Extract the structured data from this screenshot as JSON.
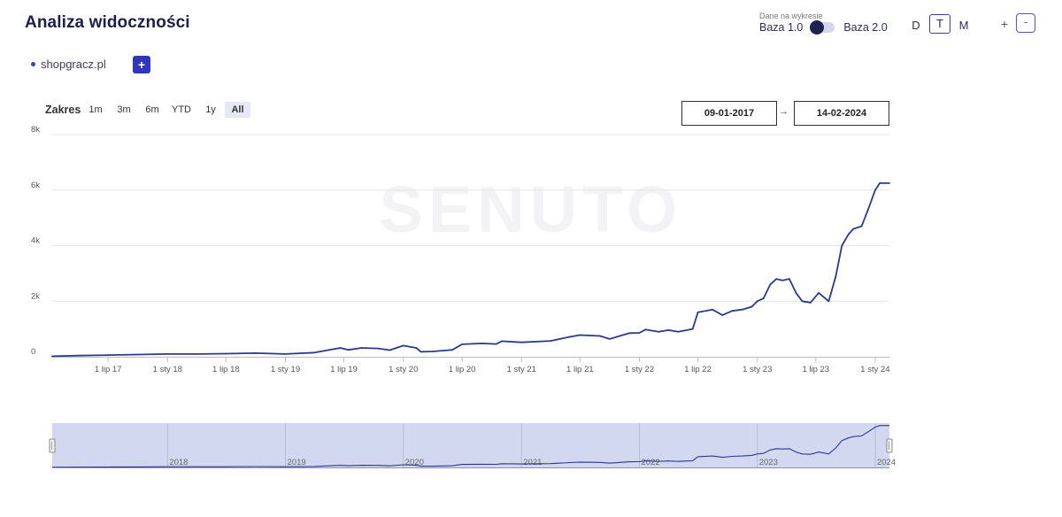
{
  "header": {
    "title": "Analiza widoczności",
    "data_caption": "Dane na wykresie",
    "base_left": "Baza 1.0",
    "base_right": "Baza 2.0",
    "period_d": "D",
    "period_t": "T",
    "period_m": "M",
    "zoom_plus": "+",
    "zoom_minus": "-"
  },
  "legend": {
    "domain": "shopgracz.pl",
    "add_label": "+"
  },
  "range": {
    "label": "Zakres",
    "buttons": [
      "1m",
      "3m",
      "6m",
      "YTD",
      "1y",
      "All"
    ],
    "active": "All",
    "from": "09-01-2017",
    "to": "14-02-2024",
    "arrow": "→"
  },
  "colors": {
    "series": "#2b3a8f",
    "navigator_fill": "#c9d1ec",
    "accent": "#3037b6"
  },
  "watermark": "SENUTO",
  "chart_data": {
    "type": "line",
    "title": "",
    "xlabel": "",
    "ylabel": "",
    "ylim": [
      0,
      8000
    ],
    "xlim": [
      "2017-01-09",
      "2024-02-14"
    ],
    "yticks": [
      0,
      2000,
      4000,
      6000,
      8000
    ],
    "ytick_labels": [
      "0",
      "2k",
      "4k",
      "6k",
      "8k"
    ],
    "xticks": [
      {
        "date": "2017-07-01",
        "label": "1 lip 17"
      },
      {
        "date": "2018-01-01",
        "label": "1 sty 18"
      },
      {
        "date": "2018-07-01",
        "label": "1 lip 18"
      },
      {
        "date": "2019-01-01",
        "label": "1 sty 19"
      },
      {
        "date": "2019-07-01",
        "label": "1 lip 19"
      },
      {
        "date": "2020-01-01",
        "label": "1 sty 20"
      },
      {
        "date": "2020-07-01",
        "label": "1 lip 20"
      },
      {
        "date": "2021-01-01",
        "label": "1 sty 21"
      },
      {
        "date": "2021-07-01",
        "label": "1 lip 21"
      },
      {
        "date": "2022-01-01",
        "label": "1 sty 22"
      },
      {
        "date": "2022-07-01",
        "label": "1 lip 22"
      },
      {
        "date": "2023-01-01",
        "label": "1 sty 23"
      },
      {
        "date": "2023-07-01",
        "label": "1 lip 23"
      },
      {
        "date": "2024-01-01",
        "label": "1 sty 24"
      }
    ],
    "navigator_years": [
      {
        "date": "2018-01-01",
        "label": "2018"
      },
      {
        "date": "2019-01-01",
        "label": "2019"
      },
      {
        "date": "2020-01-01",
        "label": "2020"
      },
      {
        "date": "2021-01-01",
        "label": "2021"
      },
      {
        "date": "2022-01-01",
        "label": "2022"
      },
      {
        "date": "2023-01-01",
        "label": "2023"
      },
      {
        "date": "2024-01-01",
        "label": "2024"
      }
    ],
    "series": [
      {
        "name": "shopgracz.pl",
        "points": [
          [
            "2017-01-09",
            20
          ],
          [
            "2017-04-01",
            40
          ],
          [
            "2017-07-01",
            60
          ],
          [
            "2017-10-01",
            80
          ],
          [
            "2018-01-01",
            100
          ],
          [
            "2018-04-01",
            100
          ],
          [
            "2018-07-01",
            110
          ],
          [
            "2018-10-01",
            130
          ],
          [
            "2019-01-01",
            100
          ],
          [
            "2019-04-01",
            150
          ],
          [
            "2019-06-20",
            320
          ],
          [
            "2019-07-15",
            250
          ],
          [
            "2019-08-25",
            320
          ],
          [
            "2019-10-15",
            300
          ],
          [
            "2019-11-20",
            240
          ],
          [
            "2020-01-01",
            400
          ],
          [
            "2020-02-10",
            320
          ],
          [
            "2020-02-25",
            180
          ],
          [
            "2020-04-01",
            190
          ],
          [
            "2020-06-01",
            250
          ],
          [
            "2020-07-01",
            450
          ],
          [
            "2020-09-01",
            480
          ],
          [
            "2020-10-15",
            460
          ],
          [
            "2020-11-01",
            560
          ],
          [
            "2021-01-01",
            520
          ],
          [
            "2021-04-01",
            570
          ],
          [
            "2021-06-01",
            720
          ],
          [
            "2021-07-01",
            780
          ],
          [
            "2021-09-01",
            750
          ],
          [
            "2021-10-01",
            640
          ],
          [
            "2021-12-01",
            850
          ],
          [
            "2022-01-01",
            860
          ],
          [
            "2022-01-20",
            980
          ],
          [
            "2022-03-01",
            900
          ],
          [
            "2022-04-01",
            960
          ],
          [
            "2022-05-01",
            900
          ],
          [
            "2022-06-15",
            1000
          ],
          [
            "2022-07-01",
            1600
          ],
          [
            "2022-08-15",
            1700
          ],
          [
            "2022-09-15",
            1500
          ],
          [
            "2022-10-15",
            1650
          ],
          [
            "2022-11-15",
            1700
          ],
          [
            "2022-12-15",
            1800
          ],
          [
            "2023-01-01",
            2000
          ],
          [
            "2023-01-20",
            2100
          ],
          [
            "2023-02-10",
            2600
          ],
          [
            "2023-03-01",
            2800
          ],
          [
            "2023-03-20",
            2750
          ],
          [
            "2023-04-10",
            2800
          ],
          [
            "2023-05-01",
            2300
          ],
          [
            "2023-05-20",
            2000
          ],
          [
            "2023-06-15",
            1950
          ],
          [
            "2023-07-10",
            2300
          ],
          [
            "2023-08-10",
            2000
          ],
          [
            "2023-09-01",
            2900
          ],
          [
            "2023-09-20",
            4000
          ],
          [
            "2023-10-10",
            4400
          ],
          [
            "2023-10-25",
            4600
          ],
          [
            "2023-11-20",
            4700
          ],
          [
            "2023-12-10",
            5300
          ],
          [
            "2024-01-01",
            6000
          ],
          [
            "2024-01-15",
            6250
          ],
          [
            "2024-02-14",
            6250
          ]
        ]
      }
    ]
  }
}
